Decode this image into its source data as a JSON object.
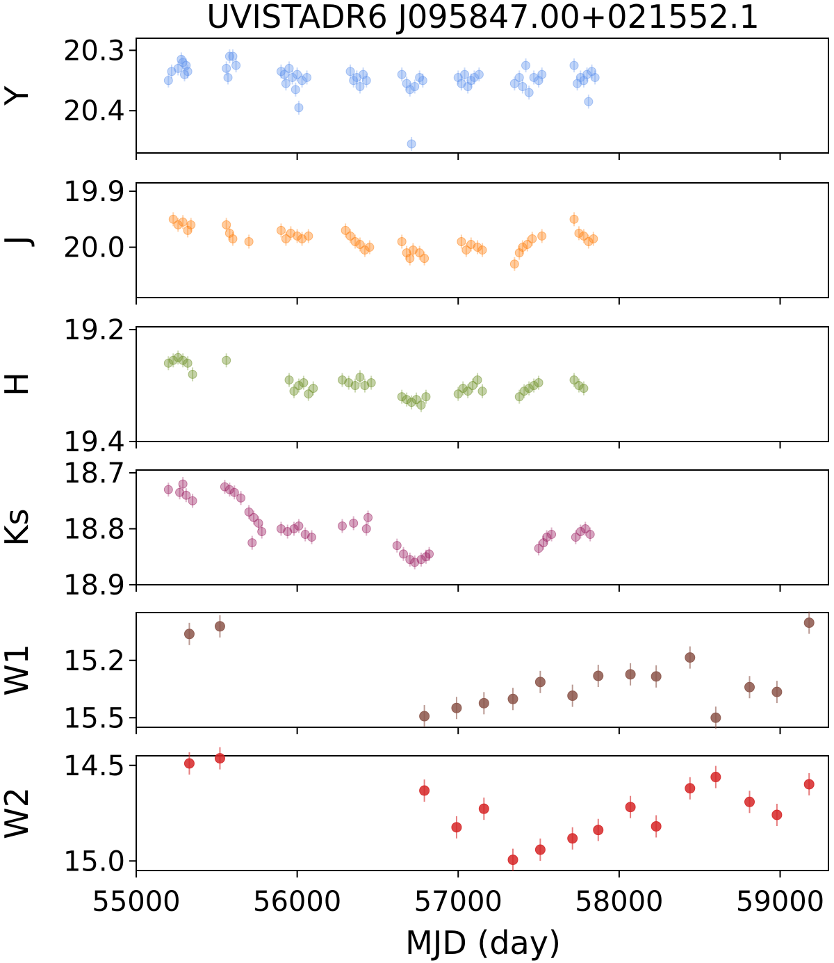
{
  "chart_data": {
    "type": "scatter",
    "title": "UVISTADR6 J095847.00+021552.1",
    "xlabel": "MJD (day)",
    "xlim": [
      55000,
      59300
    ],
    "xticks": [
      55000,
      56000,
      57000,
      58000,
      59000
    ],
    "grid": false,
    "panels": [
      {
        "ylabel": "Y",
        "color": "#6495ed",
        "ylim": [
          20.47,
          20.28
        ],
        "yticks": [
          20.3,
          20.4
        ],
        "points": [
          [
            55200,
            20.35
          ],
          [
            55220,
            20.335
          ],
          [
            55260,
            20.33
          ],
          [
            55280,
            20.315
          ],
          [
            55290,
            20.32
          ],
          [
            55300,
            20.34
          ],
          [
            55310,
            20.325
          ],
          [
            55320,
            20.335
          ],
          [
            55560,
            20.33
          ],
          [
            55570,
            20.345
          ],
          [
            55580,
            20.31
          ],
          [
            55600,
            20.31
          ],
          [
            55620,
            20.325
          ],
          [
            55900,
            20.335
          ],
          [
            55920,
            20.34
          ],
          [
            55930,
            20.355
          ],
          [
            55950,
            20.33
          ],
          [
            55970,
            20.345
          ],
          [
            55990,
            20.365
          ],
          [
            56000,
            20.34
          ],
          [
            56010,
            20.395
          ],
          [
            56030,
            20.35
          ],
          [
            56060,
            20.345
          ],
          [
            56330,
            20.335
          ],
          [
            56350,
            20.35
          ],
          [
            56370,
            20.345
          ],
          [
            56390,
            20.36
          ],
          [
            56410,
            20.34
          ],
          [
            56430,
            20.35
          ],
          [
            56650,
            20.34
          ],
          [
            56680,
            20.355
          ],
          [
            56700,
            20.365
          ],
          [
            56710,
            20.455
          ],
          [
            56730,
            20.36
          ],
          [
            56760,
            20.345
          ],
          [
            56780,
            20.35
          ],
          [
            57000,
            20.345
          ],
          [
            57020,
            20.355
          ],
          [
            57040,
            20.34
          ],
          [
            57060,
            20.36
          ],
          [
            57080,
            20.35
          ],
          [
            57100,
            20.345
          ],
          [
            57130,
            20.34
          ],
          [
            57350,
            20.355
          ],
          [
            57380,
            20.345
          ],
          [
            57400,
            20.36
          ],
          [
            57420,
            20.325
          ],
          [
            57440,
            20.37
          ],
          [
            57470,
            20.345
          ],
          [
            57500,
            20.35
          ],
          [
            57520,
            20.34
          ],
          [
            57720,
            20.325
          ],
          [
            57740,
            20.355
          ],
          [
            57760,
            20.345
          ],
          [
            57780,
            20.35
          ],
          [
            57800,
            20.34
          ],
          [
            57810,
            20.385
          ],
          [
            57830,
            20.335
          ],
          [
            57850,
            20.345
          ]
        ]
      },
      {
        "ylabel": "J",
        "color": "#ff7f0e",
        "ylim": [
          20.09,
          19.885
        ],
        "yticks": [
          19.9,
          20.0
        ],
        "points": [
          [
            55230,
            19.95
          ],
          [
            55260,
            19.96
          ],
          [
            55290,
            19.955
          ],
          [
            55320,
            19.97
          ],
          [
            55340,
            19.96
          ],
          [
            55560,
            19.96
          ],
          [
            55580,
            19.975
          ],
          [
            55600,
            19.985
          ],
          [
            55700,
            19.99
          ],
          [
            55900,
            19.97
          ],
          [
            55930,
            19.985
          ],
          [
            55960,
            19.975
          ],
          [
            56000,
            19.98
          ],
          [
            56030,
            19.985
          ],
          [
            56070,
            19.98
          ],
          [
            56300,
            19.97
          ],
          [
            56330,
            19.98
          ],
          [
            56360,
            19.99
          ],
          [
            56390,
            19.995
          ],
          [
            56420,
            20.005
          ],
          [
            56450,
            20.0
          ],
          [
            56650,
            19.99
          ],
          [
            56680,
            20.01
          ],
          [
            56700,
            20.02
          ],
          [
            56720,
            20.005
          ],
          [
            56760,
            20.01
          ],
          [
            56790,
            20.02
          ],
          [
            57020,
            19.99
          ],
          [
            57050,
            20.005
          ],
          [
            57080,
            19.995
          ],
          [
            57120,
            20.0
          ],
          [
            57150,
            20.005
          ],
          [
            57350,
            20.03
          ],
          [
            57380,
            20.01
          ],
          [
            57400,
            20.0
          ],
          [
            57430,
            19.995
          ],
          [
            57460,
            19.985
          ],
          [
            57520,
            19.98
          ],
          [
            57720,
            19.95
          ],
          [
            57750,
            19.975
          ],
          [
            57780,
            19.98
          ],
          [
            57810,
            19.99
          ],
          [
            57840,
            19.985
          ]
        ]
      },
      {
        "ylabel": "H",
        "color": "#6b8e23",
        "ylim": [
          19.4,
          19.195
        ],
        "yticks": [
          19.2,
          19.4
        ],
        "points": [
          [
            55200,
            19.26
          ],
          [
            55230,
            19.255
          ],
          [
            55260,
            19.25
          ],
          [
            55290,
            19.255
          ],
          [
            55320,
            19.26
          ],
          [
            55350,
            19.28
          ],
          [
            55560,
            19.255
          ],
          [
            55950,
            19.29
          ],
          [
            55980,
            19.31
          ],
          [
            56010,
            19.3
          ],
          [
            56040,
            19.295
          ],
          [
            56070,
            19.315
          ],
          [
            56100,
            19.305
          ],
          [
            56280,
            19.29
          ],
          [
            56320,
            19.295
          ],
          [
            56360,
            19.3
          ],
          [
            56390,
            19.285
          ],
          [
            56420,
            19.3
          ],
          [
            56460,
            19.295
          ],
          [
            56650,
            19.32
          ],
          [
            56680,
            19.325
          ],
          [
            56710,
            19.33
          ],
          [
            56740,
            19.325
          ],
          [
            56770,
            19.335
          ],
          [
            56800,
            19.32
          ],
          [
            57000,
            19.315
          ],
          [
            57030,
            19.305
          ],
          [
            57060,
            19.31
          ],
          [
            57090,
            19.3
          ],
          [
            57120,
            19.29
          ],
          [
            57150,
            19.31
          ],
          [
            57380,
            19.32
          ],
          [
            57410,
            19.31
          ],
          [
            57440,
            19.305
          ],
          [
            57470,
            19.3
          ],
          [
            57500,
            19.295
          ],
          [
            57720,
            19.29
          ],
          [
            57750,
            19.3
          ],
          [
            57780,
            19.305
          ]
        ]
      },
      {
        "ylabel": "Ks",
        "color": "#9c1f62",
        "ylim": [
          18.9,
          18.695
        ],
        "yticks": [
          18.7,
          18.8,
          18.9
        ],
        "points": [
          [
            55200,
            18.73
          ],
          [
            55270,
            18.735
          ],
          [
            55290,
            18.72
          ],
          [
            55310,
            18.74
          ],
          [
            55350,
            18.75
          ],
          [
            55550,
            18.725
          ],
          [
            55580,
            18.73
          ],
          [
            55610,
            18.735
          ],
          [
            55650,
            18.745
          ],
          [
            55700,
            18.77
          ],
          [
            55730,
            18.78
          ],
          [
            55760,
            18.79
          ],
          [
            55780,
            18.805
          ],
          [
            55720,
            18.825
          ],
          [
            55900,
            18.8
          ],
          [
            55940,
            18.805
          ],
          [
            55980,
            18.8
          ],
          [
            56010,
            18.795
          ],
          [
            56050,
            18.81
          ],
          [
            56090,
            18.815
          ],
          [
            56280,
            18.795
          ],
          [
            56350,
            18.79
          ],
          [
            56440,
            18.78
          ],
          [
            56430,
            18.8
          ],
          [
            56620,
            18.83
          ],
          [
            56660,
            18.845
          ],
          [
            56700,
            18.855
          ],
          [
            56730,
            18.86
          ],
          [
            56770,
            18.855
          ],
          [
            56800,
            18.85
          ],
          [
            56820,
            18.845
          ],
          [
            57500,
            18.835
          ],
          [
            57530,
            18.825
          ],
          [
            57550,
            18.815
          ],
          [
            57580,
            18.81
          ],
          [
            57730,
            18.815
          ],
          [
            57760,
            18.805
          ],
          [
            57790,
            18.8
          ],
          [
            57820,
            18.81
          ]
        ]
      },
      {
        "ylabel": "W1",
        "color": "#8c564b",
        "ylim": [
          15.55,
          14.95
        ],
        "yticks": [
          15.2,
          15.5
        ],
        "points": [
          [
            55330,
            15.062
          ],
          [
            55520,
            15.022
          ],
          [
            56790,
            15.492
          ],
          [
            56990,
            15.449
          ],
          [
            57160,
            15.424
          ],
          [
            57340,
            15.402
          ],
          [
            57510,
            15.313
          ],
          [
            57710,
            15.385
          ],
          [
            57870,
            15.281
          ],
          [
            58070,
            15.273
          ],
          [
            58230,
            15.284
          ],
          [
            58440,
            15.185
          ],
          [
            58600,
            15.5
          ],
          [
            58810,
            15.34
          ],
          [
            58980,
            15.365
          ],
          [
            59180,
            15.003
          ]
        ]
      },
      {
        "ylabel": "W2",
        "color": "#d62728",
        "ylim": [
          15.05,
          14.45
        ],
        "yticks": [
          14.5,
          15.0
        ],
        "points": [
          [
            55330,
            14.49
          ],
          [
            55520,
            14.463
          ],
          [
            56790,
            14.632
          ],
          [
            56990,
            14.824
          ],
          [
            57160,
            14.727
          ],
          [
            57340,
            14.994
          ],
          [
            57510,
            14.941
          ],
          [
            57710,
            14.882
          ],
          [
            57870,
            14.838
          ],
          [
            58070,
            14.718
          ],
          [
            58230,
            14.819
          ],
          [
            58440,
            14.62
          ],
          [
            58600,
            14.561
          ],
          [
            58810,
            14.691
          ],
          [
            58980,
            14.759
          ],
          [
            59180,
            14.599
          ]
        ]
      }
    ]
  }
}
